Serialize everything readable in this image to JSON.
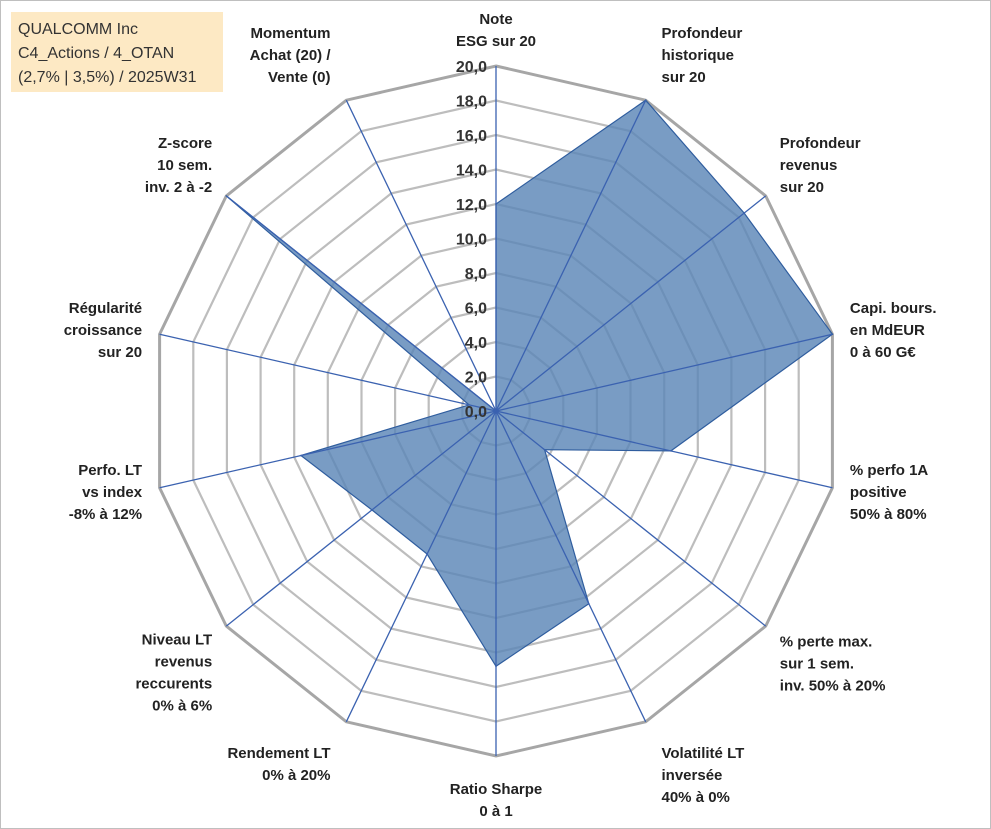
{
  "title_box": {
    "line1": "QUALCOMM Inc",
    "line2": "C4_Actions / 4_OTAN",
    "line3": "(2,7% | 3,5%) / 2025W31"
  },
  "chart_data": {
    "type": "radar",
    "rmin": 0,
    "rmax": 20,
    "ticks": [
      "0,0",
      "2,0",
      "4,0",
      "6,0",
      "8,0",
      "10,0",
      "12,0",
      "14,0",
      "16,0",
      "18,0",
      "20,0"
    ],
    "grid": true,
    "colors": {
      "fill": "#5b86b7",
      "line": "#2f5d9e",
      "grid": "#bdbdbd",
      "spoke": "#3b62b0"
    },
    "axes": [
      [
        "Note",
        "ESG sur 20"
      ],
      [
        "Profondeur",
        "historique",
        "sur 20"
      ],
      [
        "Profondeur",
        "revenus",
        "sur 20"
      ],
      [
        "Capi. bours.",
        "en MdEUR",
        "0 à 60 G€"
      ],
      [
        "% perfo 1A",
        "positive",
        "50% à 80%"
      ],
      [
        "% perte max.",
        "sur 1 sem.",
        "inv. 50% à 20%"
      ],
      [
        "Volatilité LT",
        "inversée",
        "40% à 0%"
      ],
      [
        "Ratio Sharpe",
        "0 à 1"
      ],
      [
        "Rendement LT",
        "0% à 20%"
      ],
      [
        "Niveau LT",
        "revenus",
        "reccurents",
        "0% à 6%"
      ],
      [
        "Perfo. LT",
        "vs index",
        "-8% à 12%"
      ],
      [
        "Régularité",
        "croissance",
        "sur 20"
      ],
      [
        "Z-score",
        "10 sem.",
        "inv. 2 à -2"
      ],
      [
        "Momentum",
        "Achat (20) /",
        "Vente (0)"
      ]
    ],
    "series": [
      {
        "values": [
          12.0,
          20.0,
          18.4,
          20.0,
          10.4,
          3.6,
          12.4,
          14.8,
          9.2,
          9.2,
          11.6,
          1.6,
          20.0,
          0.0
        ]
      }
    ]
  }
}
